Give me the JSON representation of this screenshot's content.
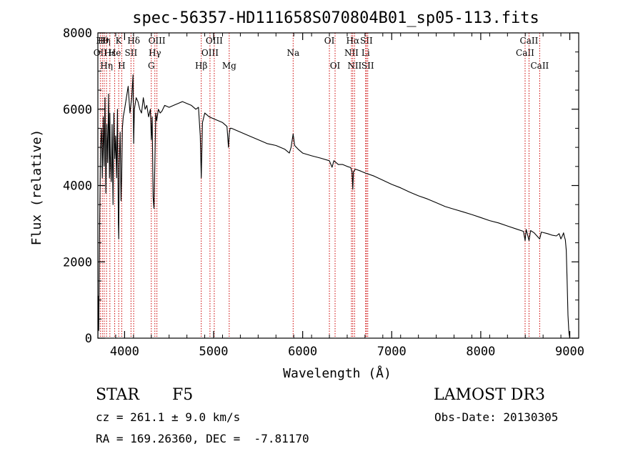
{
  "chart_data": {
    "type": "line",
    "title": "spec-56357-HD111658S070804B01_sp05-113.fits",
    "xlabel": "Wavelength (Å)",
    "ylabel": "Flux (relative)",
    "xlim": [
      3700,
      9100
    ],
    "ylim": [
      0,
      8000
    ],
    "xticks": [
      4000,
      5000,
      6000,
      7000,
      8000,
      9000
    ],
    "yticks": [
      0,
      2000,
      4000,
      6000,
      8000
    ],
    "xtick_labels": [
      "4000",
      "5000",
      "6000",
      "7000",
      "8000",
      "9000"
    ],
    "ytick_labels": [
      "0",
      "2000",
      "4000",
      "6000",
      "8000"
    ],
    "spectrum": {
      "name": "flux",
      "x": [
        3700,
        3705,
        3710,
        3720,
        3730,
        3740,
        3750,
        3760,
        3770,
        3780,
        3790,
        3800,
        3810,
        3820,
        3830,
        3835,
        3840,
        3850,
        3860,
        3870,
        3880,
        3890,
        3900,
        3910,
        3920,
        3930,
        3934,
        3940,
        3950,
        3960,
        3968,
        3975,
        3985,
        4000,
        4020,
        4040,
        4060,
        4080,
        4095,
        4102,
        4110,
        4130,
        4150,
        4170,
        4190,
        4210,
        4230,
        4250,
        4270,
        4290,
        4300,
        4310,
        4320,
        4330,
        4340,
        4350,
        4360,
        4380,
        4400,
        4420,
        4450,
        4500,
        4550,
        4600,
        4650,
        4700,
        4750,
        4800,
        4830,
        4850,
        4861,
        4875,
        4900,
        4950,
        5000,
        5050,
        5100,
        5150,
        5167,
        5175,
        5185,
        5200,
        5300,
        5400,
        5500,
        5600,
        5700,
        5800,
        5850,
        5870,
        5893,
        5910,
        5950,
        6000,
        6100,
        6200,
        6300,
        6330,
        6350,
        6400,
        6450,
        6500,
        6540,
        6555,
        6563,
        6570,
        6590,
        6650,
        6700,
        6800,
        6900,
        7000,
        7100,
        7200,
        7300,
        7400,
        7500,
        7600,
        7700,
        7800,
        7900,
        8000,
        8100,
        8200,
        8300,
        8400,
        8480,
        8498,
        8510,
        8542,
        8560,
        8600,
        8662,
        8680,
        8750,
        8800,
        8850,
        8880,
        8900,
        8920,
        8930,
        8940,
        8950,
        8960,
        8970,
        8980,
        8990,
        9000
      ],
      "values": [
        0,
        1100,
        200,
        3000,
        5000,
        5500,
        4200,
        5800,
        4500,
        6300,
        3800,
        5600,
        4600,
        6400,
        4200,
        5900,
        4800,
        4100,
        5600,
        3500,
        5900,
        4700,
        5300,
        4200,
        6000,
        3000,
        2600,
        4500,
        5400,
        3600,
        4300,
        5500,
        5800,
        6000,
        6300,
        6600,
        5900,
        6300,
        6900,
        5100,
        6000,
        6300,
        6200,
        6000,
        5900,
        6300,
        6000,
        6100,
        5800,
        6000,
        5200,
        5800,
        3700,
        3400,
        4600,
        5900,
        5700,
        6000,
        5900,
        5950,
        6100,
        6050,
        6100,
        6150,
        6200,
        6150,
        6100,
        6000,
        6050,
        5300,
        4200,
        5650,
        5900,
        5800,
        5750,
        5700,
        5650,
        5550,
        5000,
        5350,
        5500,
        5500,
        5400,
        5300,
        5200,
        5100,
        5050,
        4950,
        4850,
        5000,
        5350,
        5050,
        4950,
        4850,
        4780,
        4720,
        4650,
        4480,
        4650,
        4550,
        4550,
        4500,
        4470,
        4350,
        3900,
        4350,
        4430,
        4380,
        4330,
        4250,
        4140,
        4030,
        3940,
        3830,
        3730,
        3650,
        3550,
        3450,
        3380,
        3310,
        3240,
        3160,
        3080,
        3020,
        2940,
        2860,
        2800,
        2560,
        2850,
        2560,
        2820,
        2760,
        2600,
        2780,
        2740,
        2700,
        2680,
        2740,
        2600,
        2700,
        2760,
        2650,
        2580,
        2300,
        1500,
        600,
        150,
        0
      ]
    },
    "annotations": {
      "line_marks": [
        {
          "x": 3727,
          "label": "OII",
          "row": 1
        },
        {
          "x": 3750,
          "label": "Hθ",
          "row": 0
        },
        {
          "x": 3771,
          "label": "Hη",
          "row": 0
        },
        {
          "x": 3797,
          "label": "Hη",
          "row": 2
        },
        {
          "x": 3835,
          "label": "Hε",
          "row": 1
        },
        {
          "x": 3889,
          "label": "He",
          "row": 1
        },
        {
          "x": 3934,
          "label": "K",
          "row": 0
        },
        {
          "x": 3968,
          "label": "H",
          "row": 2
        },
        {
          "x": 4072,
          "label": "SII",
          "row": 1
        },
        {
          "x": 4102,
          "label": "Hδ",
          "row": 0
        },
        {
          "x": 4300,
          "label": "G",
          "row": 2
        },
        {
          "x": 4340,
          "label": "Hγ",
          "row": 1
        },
        {
          "x": 4363,
          "label": "OIII",
          "row": 0
        },
        {
          "x": 4861,
          "label": "Hβ",
          "row": 2
        },
        {
          "x": 4959,
          "label": "OIII",
          "row": 1
        },
        {
          "x": 5007,
          "label": "OIII",
          "row": 0
        },
        {
          "x": 5175,
          "label": "Mg",
          "row": 2
        },
        {
          "x": 5893,
          "label": "Na",
          "row": 1
        },
        {
          "x": 6300,
          "label": "OI",
          "row": 0
        },
        {
          "x": 6364,
          "label": "OI",
          "row": 2
        },
        {
          "x": 6548,
          "label": "NII",
          "row": 1
        },
        {
          "x": 6563,
          "label": "Hα",
          "row": 0
        },
        {
          "x": 6583,
          "label": "NII",
          "row": 2
        },
        {
          "x": 6707,
          "label": "Li",
          "row": 1
        },
        {
          "x": 6716,
          "label": "SII",
          "row": 0
        },
        {
          "x": 6731,
          "label": "SII",
          "row": 2
        },
        {
          "x": 8498,
          "label": "CaII",
          "row": 1
        },
        {
          "x": 8542,
          "label": "CaII",
          "row": 0
        },
        {
          "x": 8662,
          "label": "CaII",
          "row": 2
        }
      ]
    }
  },
  "info": {
    "object_class": "STAR",
    "subclass": "F5",
    "survey": "LAMOST DR3",
    "cz": "cz = 261.1 ± 9.0 km/s",
    "obs_date": "Obs-Date: 20130305",
    "coords": "RA = 169.26360, DEC =  -7.81170"
  },
  "colors": {
    "axis": "#000000",
    "spectrum": "#000000",
    "line_marks": "#cc0000",
    "background": "#ffffff"
  }
}
